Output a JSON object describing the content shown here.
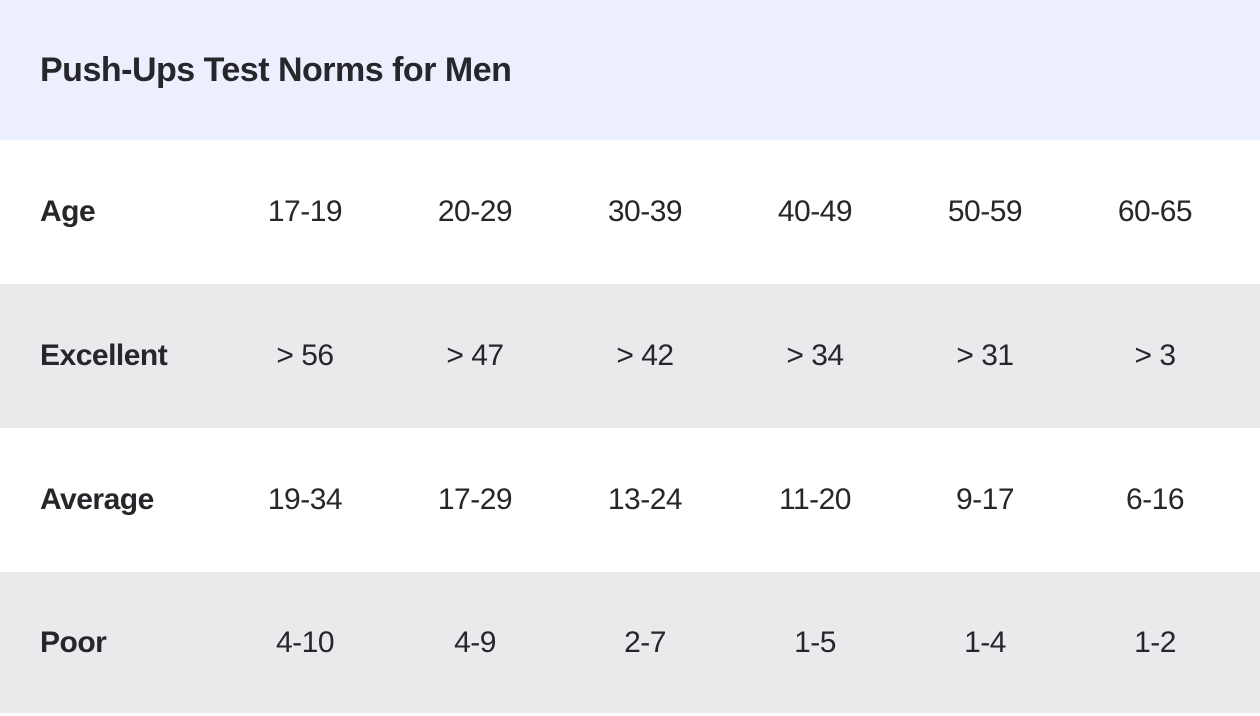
{
  "chart_data": {
    "type": "table",
    "title": "Push-Ups Test Norms for Men",
    "columns": [
      "Age",
      "17-19",
      "20-29",
      "30-39",
      "40-49",
      "50-59",
      "60-65"
    ],
    "rows": [
      [
        "Excellent",
        "> 56",
        "> 47",
        "> 42",
        "> 34",
        "> 31",
        "> 3"
      ],
      [
        "Average",
        "19-34",
        "17-29",
        "13-24",
        "11-20",
        "9-17",
        "6-16"
      ],
      [
        "Poor",
        "4-10",
        "4-9",
        "2-7",
        "1-5",
        "1-4",
        "1-2"
      ]
    ]
  },
  "colors": {
    "header_bg": "#ebeffe",
    "stripe_bg": "#e8eaec",
    "row_bg": "#ffffff",
    "text": "#26262b"
  }
}
